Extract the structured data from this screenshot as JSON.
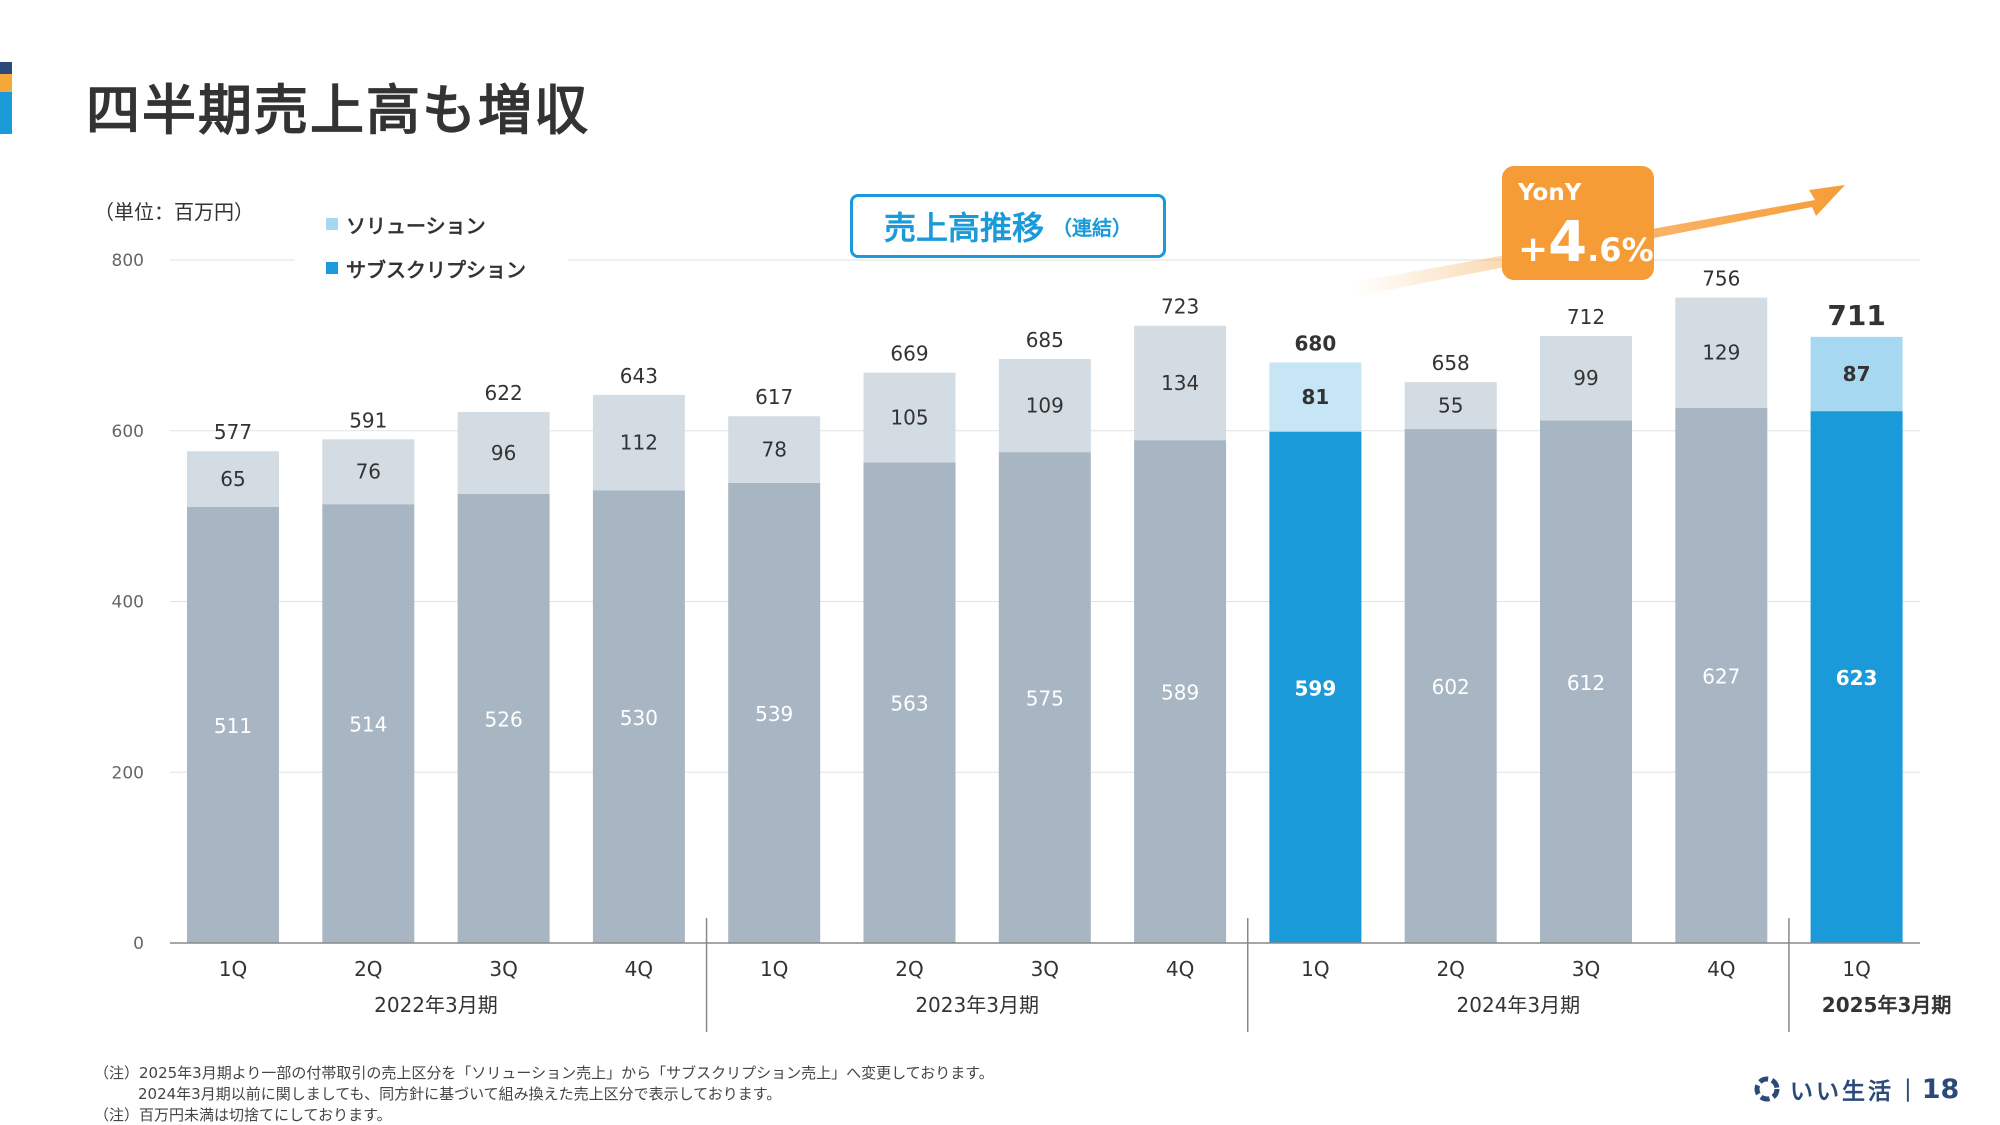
{
  "page": {
    "title": "四半期売上高も増収",
    "unit": "（単位：百万円）",
    "subtitle": "売上高推移",
    "subtitle_sub": "（連結）",
    "yony_label": "YonY",
    "yony_sign": "+",
    "yony_int": "4",
    "yony_dec": ".6%",
    "footnotes": [
      "（注）2025年3月期より一部の付帯取引の売上区分を「ソリューション売上」から「サブスクリプション売上」へ変更しております。",
      "2024年3月期以前に関しましても、同方針に基づいて組み換えた売上区分で表示しております。",
      "（注）百万円未満は切捨てにしております。"
    ],
    "brand_name": "いい生活",
    "brand_sep": "|",
    "page_number": "18"
  },
  "colors": {
    "past_bottom": "#a8b6c3",
    "past_top": "#d4dce3",
    "current_bottom": "#1a9ad8",
    "current_top": "#c6e6f6",
    "latest_top": "#a6d9f1",
    "accent_orange": "#f69c36",
    "grid": "#e2e2e2"
  },
  "chart_data": {
    "type": "bar",
    "stacked": true,
    "title": "売上高推移（連結）",
    "ylim": [
      0,
      800
    ],
    "yticks": [
      0,
      200,
      400,
      600,
      800
    ],
    "categories": [
      "1Q",
      "2Q",
      "3Q",
      "4Q",
      "1Q",
      "2Q",
      "3Q",
      "4Q",
      "1Q",
      "2Q",
      "3Q",
      "4Q",
      "1Q"
    ],
    "groups": [
      {
        "label": "2022年3月期",
        "start": 0,
        "end": 3
      },
      {
        "label": "2023年3月期",
        "start": 4,
        "end": 7
      },
      {
        "label": "2024年3月期",
        "start": 8,
        "end": 11
      },
      {
        "label": "2025年3月期",
        "start": 12,
        "end": 12
      }
    ],
    "series": [
      {
        "name": "サブスクリプション",
        "values": [
          511,
          514,
          526,
          530,
          539,
          563,
          575,
          589,
          599,
          602,
          612,
          627,
          623
        ]
      },
      {
        "name": "ソリューション",
        "values": [
          65,
          76,
          96,
          112,
          78,
          105,
          109,
          134,
          81,
          55,
          99,
          129,
          87
        ]
      }
    ],
    "totals": [
      577,
      591,
      622,
      643,
      617,
      669,
      685,
      723,
      680,
      658,
      712,
      756,
      711
    ],
    "highlight": {
      "prior_year_index": 8,
      "current_index": 12
    },
    "legend": [
      "ソリューション",
      "サブスクリプション"
    ]
  }
}
